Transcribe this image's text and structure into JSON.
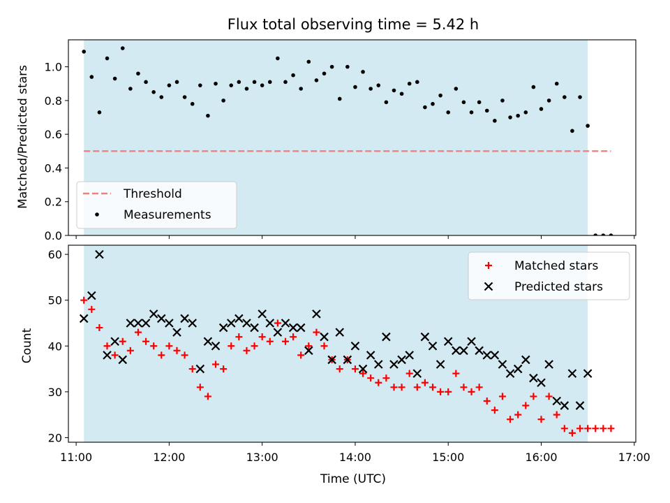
{
  "figure": {
    "title": "Flux total observing time = 5.42 h"
  },
  "colors": {
    "shade": "#add8e6",
    "threshold": "#f08080",
    "measurement": "#000000",
    "matched": "#ff0000",
    "predicted": "#000000"
  },
  "chart_data": [
    {
      "type": "scatter",
      "panel": "top",
      "title": "Flux total observing time = 5.42 h",
      "xlabel": "",
      "ylabel": "Matched/Predicted stars",
      "ylim": [
        0,
        1.16
      ],
      "yticks": [
        "0.0",
        "0.2",
        "0.4",
        "0.6",
        "0.8",
        "1.0"
      ],
      "xlim": [
        "10:55",
        "17:01"
      ],
      "shaded_span": [
        "11:05",
        "16:30"
      ],
      "legend": {
        "position": "lower-left",
        "entries": [
          "Threshold",
          "Measurements"
        ]
      },
      "threshold": {
        "name": "Threshold",
        "value": 0.5,
        "x": [
          "11:05",
          "16:45"
        ]
      },
      "series": [
        {
          "name": "Measurements",
          "points": [
            [
              "11:05",
              1.09
            ],
            [
              "11:10",
              0.94
            ],
            [
              "11:15",
              0.73
            ],
            [
              "11:20",
              1.05
            ],
            [
              "11:25",
              0.93
            ],
            [
              "11:30",
              1.11
            ],
            [
              "11:35",
              0.87
            ],
            [
              "11:40",
              0.96
            ],
            [
              "11:45",
              0.91
            ],
            [
              "11:50",
              0.85
            ],
            [
              "11:55",
              0.82
            ],
            [
              "12:00",
              0.89
            ],
            [
              "12:05",
              0.91
            ],
            [
              "12:10",
              0.82
            ],
            [
              "12:15",
              0.78
            ],
            [
              "12:20",
              0.89
            ],
            [
              "12:25",
              0.71
            ],
            [
              "12:30",
              0.9
            ],
            [
              "12:35",
              0.8
            ],
            [
              "12:40",
              0.89
            ],
            [
              "12:45",
              0.91
            ],
            [
              "12:50",
              0.87
            ],
            [
              "12:55",
              0.91
            ],
            [
              "13:00",
              0.89
            ],
            [
              "13:05",
              0.91
            ],
            [
              "13:10",
              1.05
            ],
            [
              "13:15",
              0.91
            ],
            [
              "13:20",
              0.95
            ],
            [
              "13:25",
              0.87
            ],
            [
              "13:30",
              1.03
            ],
            [
              "13:35",
              0.92
            ],
            [
              "13:40",
              0.96
            ],
            [
              "13:45",
              1.0
            ],
            [
              "13:50",
              0.81
            ],
            [
              "13:55",
              1.0
            ],
            [
              "14:00",
              0.88
            ],
            [
              "14:05",
              0.97
            ],
            [
              "14:10",
              0.87
            ],
            [
              "14:15",
              0.89
            ],
            [
              "14:20",
              0.79
            ],
            [
              "14:25",
              0.86
            ],
            [
              "14:30",
              0.84
            ],
            [
              "14:35",
              0.9
            ],
            [
              "14:40",
              0.91
            ],
            [
              "14:45",
              0.76
            ],
            [
              "14:50",
              0.78
            ],
            [
              "14:55",
              0.83
            ],
            [
              "15:00",
              0.73
            ],
            [
              "15:05",
              0.87
            ],
            [
              "15:10",
              0.79
            ],
            [
              "15:15",
              0.73
            ],
            [
              "15:20",
              0.79
            ],
            [
              "15:25",
              0.74
            ],
            [
              "15:30",
              0.68
            ],
            [
              "15:35",
              0.8
            ],
            [
              "15:40",
              0.7
            ],
            [
              "15:45",
              0.71
            ],
            [
              "15:50",
              0.73
            ],
            [
              "15:55",
              0.88
            ],
            [
              "16:00",
              0.75
            ],
            [
              "16:05",
              0.8
            ],
            [
              "16:10",
              0.9
            ],
            [
              "16:15",
              0.82
            ],
            [
              "16:20",
              0.62
            ],
            [
              "16:25",
              0.82
            ],
            [
              "16:30",
              0.65
            ],
            [
              "16:35",
              0.0
            ],
            [
              "16:40",
              0.0
            ],
            [
              "16:45",
              0.0
            ]
          ]
        }
      ]
    },
    {
      "type": "scatter",
      "panel": "bottom",
      "xlabel": "Time (UTC)",
      "ylabel": "Count",
      "ylim": [
        19,
        62
      ],
      "yticks": [
        "20",
        "30",
        "40",
        "50",
        "60"
      ],
      "xlim": [
        "10:55",
        "17:01"
      ],
      "xticks": [
        "11:00",
        "12:00",
        "13:00",
        "14:00",
        "15:00",
        "16:00",
        "17:00"
      ],
      "shaded_span": [
        "11:05",
        "16:30"
      ],
      "legend": {
        "position": "top-right",
        "entries": [
          "Matched stars",
          "Predicted stars"
        ]
      },
      "series": [
        {
          "name": "Matched stars",
          "marker": "plus",
          "points": [
            [
              "11:05",
              50
            ],
            [
              "11:10",
              48
            ],
            [
              "11:15",
              44
            ],
            [
              "11:20",
              40
            ],
            [
              "11:25",
              38
            ],
            [
              "11:30",
              41
            ],
            [
              "11:35",
              39
            ],
            [
              "11:40",
              43
            ],
            [
              "11:45",
              41
            ],
            [
              "11:50",
              40
            ],
            [
              "11:55",
              38
            ],
            [
              "12:00",
              40
            ],
            [
              "12:05",
              39
            ],
            [
              "12:10",
              38
            ],
            [
              "12:15",
              35
            ],
            [
              "12:20",
              31
            ],
            [
              "12:25",
              29
            ],
            [
              "12:30",
              36
            ],
            [
              "12:35",
              35
            ],
            [
              "12:40",
              40
            ],
            [
              "12:45",
              42
            ],
            [
              "12:50",
              39
            ],
            [
              "12:55",
              40
            ],
            [
              "13:00",
              42
            ],
            [
              "13:05",
              41
            ],
            [
              "13:10",
              45
            ],
            [
              "13:15",
              41
            ],
            [
              "13:20",
              42
            ],
            [
              "13:25",
              38
            ],
            [
              "13:30",
              40
            ],
            [
              "13:35",
              43
            ],
            [
              "13:40",
              40
            ],
            [
              "13:45",
              37
            ],
            [
              "13:50",
              35
            ],
            [
              "13:55",
              37
            ],
            [
              "14:00",
              35
            ],
            [
              "14:05",
              34
            ],
            [
              "14:10",
              33
            ],
            [
              "14:15",
              32
            ],
            [
              "14:20",
              33
            ],
            [
              "14:25",
              31
            ],
            [
              "14:30",
              31
            ],
            [
              "14:35",
              34
            ],
            [
              "14:40",
              31
            ],
            [
              "14:45",
              32
            ],
            [
              "14:50",
              31
            ],
            [
              "14:55",
              30
            ],
            [
              "15:00",
              30
            ],
            [
              "15:05",
              34
            ],
            [
              "15:10",
              31
            ],
            [
              "15:15",
              30
            ],
            [
              "15:20",
              31
            ],
            [
              "15:25",
              28
            ],
            [
              "15:30",
              26
            ],
            [
              "15:35",
              29
            ],
            [
              "15:40",
              24
            ],
            [
              "15:45",
              25
            ],
            [
              "15:50",
              27
            ],
            [
              "15:55",
              29
            ],
            [
              "16:00",
              24
            ],
            [
              "16:05",
              29
            ],
            [
              "16:10",
              25
            ],
            [
              "16:15",
              22
            ],
            [
              "16:20",
              21
            ],
            [
              "16:25",
              22
            ],
            [
              "16:30",
              22
            ],
            [
              "16:35",
              22
            ],
            [
              "16:40",
              22
            ],
            [
              "16:45",
              22
            ]
          ]
        },
        {
          "name": "Predicted stars",
          "marker": "x",
          "points": [
            [
              "11:05",
              46
            ],
            [
              "11:10",
              51
            ],
            [
              "11:15",
              60
            ],
            [
              "11:20",
              38
            ],
            [
              "11:25",
              41
            ],
            [
              "11:30",
              37
            ],
            [
              "11:35",
              45
            ],
            [
              "11:40",
              45
            ],
            [
              "11:45",
              45
            ],
            [
              "11:50",
              47
            ],
            [
              "11:55",
              46
            ],
            [
              "12:00",
              45
            ],
            [
              "12:05",
              43
            ],
            [
              "12:10",
              46
            ],
            [
              "12:15",
              45
            ],
            [
              "12:20",
              35
            ],
            [
              "12:25",
              41
            ],
            [
              "12:30",
              40
            ],
            [
              "12:35",
              44
            ],
            [
              "12:40",
              45
            ],
            [
              "12:45",
              46
            ],
            [
              "12:50",
              45
            ],
            [
              "12:55",
              44
            ],
            [
              "13:00",
              47
            ],
            [
              "13:05",
              45
            ],
            [
              "13:10",
              43
            ],
            [
              "13:15",
              45
            ],
            [
              "13:20",
              44
            ],
            [
              "13:25",
              44
            ],
            [
              "13:30",
              39
            ],
            [
              "13:35",
              47
            ],
            [
              "13:40",
              42
            ],
            [
              "13:45",
              37
            ],
            [
              "13:50",
              43
            ],
            [
              "13:55",
              37
            ],
            [
              "14:00",
              40
            ],
            [
              "14:05",
              35
            ],
            [
              "14:10",
              38
            ],
            [
              "14:15",
              36
            ],
            [
              "14:20",
              42
            ],
            [
              "14:25",
              36
            ],
            [
              "14:30",
              37
            ],
            [
              "14:35",
              38
            ],
            [
              "14:40",
              34
            ],
            [
              "14:45",
              42
            ],
            [
              "14:50",
              40
            ],
            [
              "14:55",
              36
            ],
            [
              "15:00",
              41
            ],
            [
              "15:05",
              39
            ],
            [
              "15:10",
              39
            ],
            [
              "15:15",
              41
            ],
            [
              "15:20",
              39
            ],
            [
              "15:25",
              38
            ],
            [
              "15:30",
              38
            ],
            [
              "15:35",
              36
            ],
            [
              "15:40",
              34
            ],
            [
              "15:45",
              35
            ],
            [
              "15:50",
              37
            ],
            [
              "15:55",
              33
            ],
            [
              "16:00",
              32
            ],
            [
              "16:05",
              36
            ],
            [
              "16:10",
              28
            ],
            [
              "16:15",
              27
            ],
            [
              "16:20",
              34
            ],
            [
              "16:25",
              27
            ],
            [
              "16:30",
              34
            ]
          ]
        }
      ]
    }
  ]
}
